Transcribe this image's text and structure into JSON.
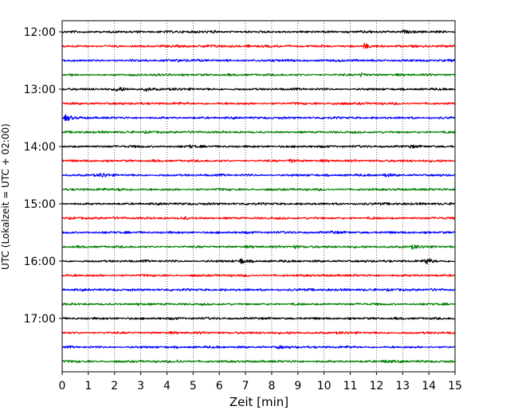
{
  "chart_data": {
    "type": "line",
    "title": "",
    "xlabel": "Zeit  [min]",
    "ylabel": "UTC (Lokalzeit = UTC + 02:00)",
    "xlim": [
      0,
      15
    ],
    "x_ticks": [
      "0",
      "1",
      "2",
      "3",
      "4",
      "5",
      "6",
      "7",
      "8",
      "9",
      "10",
      "11",
      "12",
      "13",
      "14",
      "15"
    ],
    "y_ticks": [
      "12:00",
      "13:00",
      "14:00",
      "15:00",
      "16:00",
      "17:00"
    ],
    "grid": "vertical dotted lines at each minute",
    "trace_interval": "15 min",
    "trace_color_cycle": [
      "#000000",
      "#ff0000",
      "#0000ff",
      "#008000"
    ],
    "traces": [
      {
        "start": "12:00",
        "color": "#000000",
        "events": [
          {
            "x": 13.0,
            "a": 1.6
          }
        ]
      },
      {
        "start": "12:15",
        "color": "#ff0000",
        "events": [
          {
            "x": 11.55,
            "a": 3.5
          }
        ]
      },
      {
        "start": "12:30",
        "color": "#0000ff",
        "events": [
          {
            "x": 4.3,
            "a": 1.3
          }
        ]
      },
      {
        "start": "12:45",
        "color": "#008000",
        "events": [
          {
            "x": 11.4,
            "a": 1.8
          }
        ]
      },
      {
        "start": "13:00",
        "color": "#000000",
        "events": [
          {
            "x": 2.1,
            "a": 2.8
          },
          {
            "x": 3.2,
            "a": 1.8
          }
        ]
      },
      {
        "start": "13:15",
        "color": "#ff0000",
        "events": [
          {
            "x": 10.4,
            "a": 1.6
          }
        ]
      },
      {
        "start": "13:30",
        "color": "#0000ff",
        "events": [
          {
            "x": 0.15,
            "a": 4.0
          }
        ]
      },
      {
        "start": "13:45",
        "color": "#008000",
        "events": []
      },
      {
        "start": "14:00",
        "color": "#000000",
        "events": [
          {
            "x": 4.85,
            "a": 1.4
          },
          {
            "x": 13.3,
            "a": 1.2
          }
        ]
      },
      {
        "start": "14:15",
        "color": "#ff0000",
        "events": [
          {
            "x": 8.7,
            "a": 2.2
          }
        ]
      },
      {
        "start": "14:30",
        "color": "#0000ff",
        "events": [
          {
            "x": 1.5,
            "a": 2.2
          },
          {
            "x": 12.3,
            "a": 1.8
          }
        ]
      },
      {
        "start": "14:45",
        "color": "#008000",
        "events": [
          {
            "x": 2.2,
            "a": 1.6
          }
        ]
      },
      {
        "start": "15:00",
        "color": "#000000",
        "events": []
      },
      {
        "start": "15:15",
        "color": "#ff0000",
        "events": [
          {
            "x": 4.6,
            "a": 1.4
          }
        ]
      },
      {
        "start": "15:30",
        "color": "#0000ff",
        "events": [
          {
            "x": 10.3,
            "a": 1.2
          }
        ]
      },
      {
        "start": "15:45",
        "color": "#008000",
        "events": [
          {
            "x": 8.9,
            "a": 1.4
          },
          {
            "x": 13.4,
            "a": 1.8
          }
        ]
      },
      {
        "start": "16:00",
        "color": "#000000",
        "events": [
          {
            "x": 6.8,
            "a": 3.2
          },
          {
            "x": 13.9,
            "a": 3.5
          }
        ]
      },
      {
        "start": "16:15",
        "color": "#ff0000",
        "events": []
      },
      {
        "start": "16:30",
        "color": "#0000ff",
        "events": []
      },
      {
        "start": "16:45",
        "color": "#008000",
        "events": [
          {
            "x": 2.9,
            "a": 1.2
          }
        ]
      },
      {
        "start": "17:00",
        "color": "#000000",
        "events": []
      },
      {
        "start": "17:15",
        "color": "#ff0000",
        "events": []
      },
      {
        "start": "17:30",
        "color": "#0000ff",
        "events": [
          {
            "x": 8.25,
            "a": 1.5
          }
        ]
      },
      {
        "start": "17:45",
        "color": "#008000",
        "events": [
          {
            "x": 4.4,
            "a": 1.4
          },
          {
            "x": 12.3,
            "a": 1.9
          }
        ]
      }
    ]
  }
}
